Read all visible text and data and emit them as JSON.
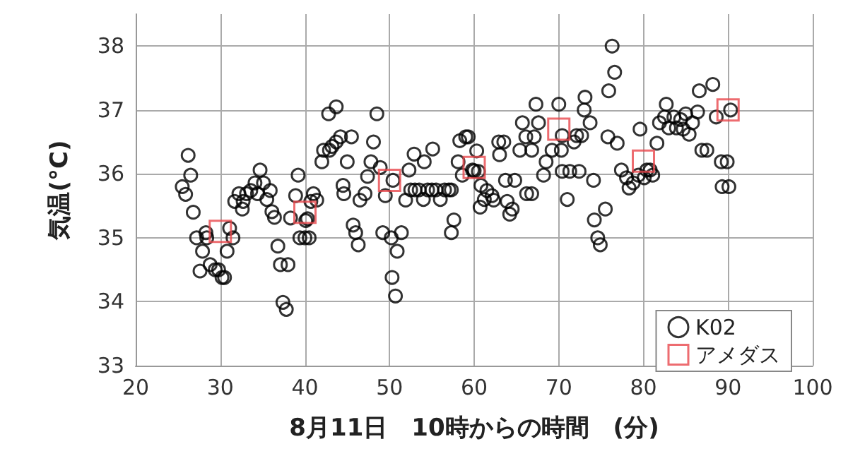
{
  "chart_data": {
    "type": "scatter",
    "xlabel": "8月11日　10時からの時間　(分)",
    "ylabel": "気温(°C)",
    "xlim": [
      20,
      100
    ],
    "xticks": [
      20,
      30,
      40,
      50,
      60,
      70,
      80,
      90,
      100
    ],
    "ylim": [
      33,
      38.5
    ],
    "yticks": [
      33,
      34,
      35,
      36,
      37,
      38
    ],
    "grid": true,
    "legend": "bottom right",
    "series": [
      {
        "name": "K02",
        "color": "#000000",
        "marker": "circle",
        "x": [
          25.5,
          25.9,
          26.2,
          26.5,
          26.8,
          27.2,
          27.6,
          27.9,
          28.3,
          28.4,
          28.8,
          29.4,
          29.8,
          30.2,
          30.5,
          30.8,
          31.1,
          31.5,
          31.7,
          32.2,
          32.6,
          32.7,
          33.1,
          33.6,
          34.1,
          34.4,
          34.7,
          35.1,
          35.5,
          35.9,
          36.1,
          36.4,
          36.8,
          37.1,
          37.4,
          37.8,
          38.0,
          38.3,
          38.9,
          39.2,
          39.4,
          40.0,
          40.1,
          40.3,
          40.5,
          40.7,
          41.0,
          41.4,
          42.0,
          42.2,
          42.8,
          42.9,
          43.2,
          43.7,
          43.7,
          44.2,
          44.5,
          44.6,
          45.0,
          45.5,
          45.7,
          46.0,
          46.3,
          46.5,
          47.1,
          47.4,
          47.8,
          48.1,
          48.5,
          48.9,
          49.2,
          49.5,
          50.2,
          50.3,
          50.4,
          50.7,
          50.9,
          51.4,
          51.9,
          52.3,
          52.5,
          52.9,
          53.0,
          53.5,
          54.0,
          54.1,
          54.5,
          55.0,
          55.1,
          55.5,
          56.0,
          56.5,
          57.0,
          57.3,
          57.3,
          57.6,
          58.1,
          58.3,
          58.6,
          59.0,
          59.3,
          59.8,
          60.0,
          60.3,
          60.5,
          60.7,
          60.8,
          61.2,
          61.5,
          62.1,
          62.3,
          62.9,
          63.0,
          63.5,
          63.7,
          63.9,
          64.2,
          64.5,
          64.8,
          65.4,
          65.7,
          66.1,
          66.2,
          66.8,
          66.8,
          67.1,
          67.3,
          67.6,
          68.2,
          68.5,
          69.2,
          70.0,
          70.3,
          70.4,
          70.4,
          71.0,
          71.3,
          71.8,
          72.1,
          72.4,
          72.7,
          73.0,
          73.1,
          73.7,
          74.1,
          74.2,
          74.6,
          74.9,
          75.5,
          75.8,
          75.9,
          76.3,
          76.6,
          76.9,
          77.4,
          78.0,
          78.3,
          78.8,
          79.4,
          79.6,
          80.1,
          80.4,
          80.8,
          81.1,
          81.6,
          81.9,
          82.5,
          82.7,
          83.0,
          83.6,
          83.9,
          84.4,
          84.7,
          85.0,
          85.4,
          85.8,
          86.4,
          86.6,
          86.9,
          87.5,
          88.2,
          88.6,
          89.2,
          89.3,
          89.9,
          90.1,
          90.3
        ],
        "values": [
          35.8,
          35.68,
          36.29,
          35.98,
          35.4,
          35.0,
          34.48,
          34.79,
          35.08,
          35.0,
          34.58,
          34.5,
          34.5,
          34.38,
          34.38,
          34.79,
          35.15,
          35.0,
          35.57,
          35.69,
          35.45,
          35.57,
          35.69,
          35.74,
          35.86,
          35.69,
          36.06,
          35.86,
          35.6,
          35.74,
          35.41,
          35.32,
          34.87,
          34.58,
          33.99,
          33.88,
          34.58,
          35.31,
          35.66,
          35.98,
          35.0,
          35.0,
          35.27,
          35.3,
          35.0,
          35.57,
          35.69,
          35.59,
          36.19,
          36.37,
          36.94,
          36.37,
          36.43,
          36.5,
          37.05,
          36.58,
          35.82,
          35.69,
          36.19,
          36.58,
          35.2,
          35.08,
          34.89,
          35.59,
          35.69,
          35.96,
          36.19,
          36.5,
          36.94,
          36.1,
          35.08,
          35.66,
          35.0,
          34.38,
          35.9,
          34.09,
          34.79,
          35.08,
          35.59,
          36.06,
          35.75,
          36.31,
          35.75,
          35.75,
          35.6,
          36.19,
          35.75,
          35.75,
          36.39,
          35.75,
          35.6,
          35.75,
          35.75,
          35.75,
          35.08,
          35.28,
          36.19,
          36.52,
          35.98,
          36.58,
          36.58,
          36.06,
          36.05,
          36.36,
          36.04,
          35.48,
          35.82,
          35.6,
          35.74,
          35.66,
          35.59,
          36.5,
          36.3,
          36.5,
          35.9,
          35.57,
          35.37,
          35.45,
          35.9,
          36.37,
          36.8,
          36.58,
          35.69,
          35.69,
          36.37,
          36.58,
          37.09,
          36.8,
          35.98,
          36.19,
          36.37,
          37.09,
          36.37,
          36.6,
          36.04,
          35.6,
          36.04,
          36.5,
          36.6,
          36.04,
          36.6,
          37.0,
          37.2,
          36.8,
          35.9,
          35.28,
          35.0,
          34.89,
          35.45,
          36.58,
          37.3,
          38.0,
          37.59,
          36.48,
          36.06,
          35.94,
          35.78,
          35.86,
          35.98,
          36.7,
          35.94,
          36.06,
          36.06,
          35.98,
          36.48,
          36.8,
          36.89,
          37.09,
          36.72,
          36.89,
          36.72,
          36.85,
          36.7,
          36.94,
          36.62,
          36.8,
          36.97,
          37.3,
          36.37,
          36.37,
          37.4,
          36.89,
          36.19,
          35.8,
          36.19,
          35.8,
          37.0
        ]
      },
      {
        "name": "アメダス",
        "color": "#e8474c",
        "marker": "square",
        "x": [
          30,
          40,
          50,
          60,
          70,
          80,
          90
        ],
        "values": [
          35.1,
          35.4,
          35.9,
          36.1,
          36.7,
          36.2,
          37.0
        ]
      }
    ]
  }
}
